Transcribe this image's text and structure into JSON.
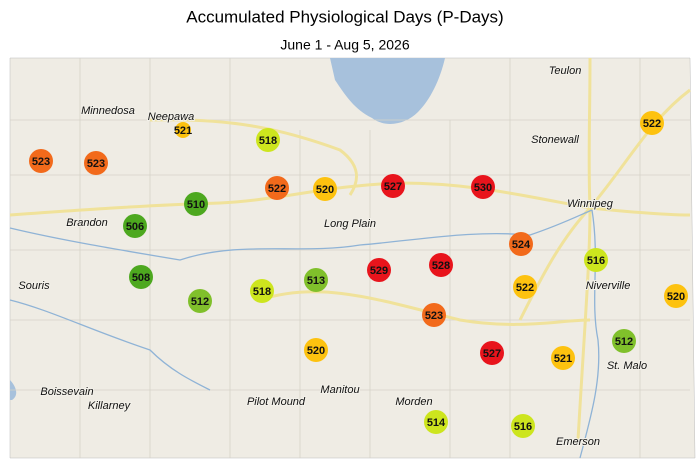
{
  "title": "Accumulated Physiological Days (P-Days)",
  "subtitle": "June 1 - Aug 5, 2026",
  "places": [
    "Teulon",
    "Minnedosa",
    "Neepawa",
    "Stonewall",
    "Winnipeg",
    "Brandon",
    "Long Plain",
    "Souris",
    "Niverville",
    "St. Malo",
    "Boissevain",
    "Killarney",
    "Pilot Mound",
    "Manitou",
    "Morden",
    "Emerson"
  ],
  "stations": [
    {
      "value": 523,
      "color": "#f26a1b"
    },
    {
      "value": 523,
      "color": "#f26a1b"
    },
    {
      "value": 521,
      "color": "#fdc20f"
    },
    {
      "value": 518,
      "color": "#cde51e"
    },
    {
      "value": 522,
      "color": "#f26a1b"
    },
    {
      "value": 520,
      "color": "#fdc20f"
    },
    {
      "value": 527,
      "color": "#e8141c"
    },
    {
      "value": 530,
      "color": "#e8141c"
    },
    {
      "value": 522,
      "color": "#fdc20f"
    },
    {
      "value": 510,
      "color": "#4da81f"
    },
    {
      "value": 506,
      "color": "#4da81f"
    },
    {
      "value": 524,
      "color": "#f26a1b"
    },
    {
      "value": 516,
      "color": "#cde51e"
    },
    {
      "value": 508,
      "color": "#4da81f"
    },
    {
      "value": 512,
      "color": "#80c02b"
    },
    {
      "value": 518,
      "color": "#cde51e"
    },
    {
      "value": 513,
      "color": "#80c02b"
    },
    {
      "value": 529,
      "color": "#e8141c"
    },
    {
      "value": 528,
      "color": "#e8141c"
    },
    {
      "value": 522,
      "color": "#fdc20f"
    },
    {
      "value": 520,
      "color": "#fdc20f"
    },
    {
      "value": 523,
      "color": "#f26a1b"
    },
    {
      "value": 520,
      "color": "#fdc20f"
    },
    {
      "value": 527,
      "color": "#e8141c"
    },
    {
      "value": 521,
      "color": "#fdc20f"
    },
    {
      "value": 512,
      "color": "#80c02b"
    },
    {
      "value": 514,
      "color": "#cde51e"
    },
    {
      "value": 516,
      "color": "#cde51e"
    }
  ]
}
